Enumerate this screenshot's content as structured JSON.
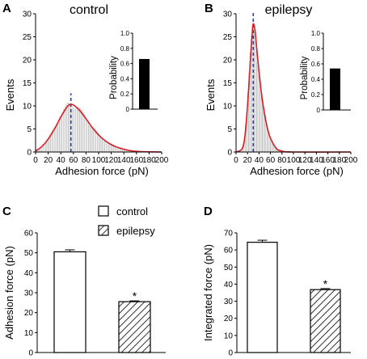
{
  "chart_data": [
    {
      "panel": "A",
      "type": "histogram",
      "title": "control",
      "xlabel": "Adhesion force (pN)",
      "ylabel": "Events",
      "xlim": [
        0,
        200
      ],
      "ylim": [
        0,
        30
      ],
      "xticks": [
        0,
        20,
        40,
        60,
        80,
        100,
        120,
        140,
        160,
        180,
        200
      ],
      "yticks": [
        0,
        5,
        10,
        15,
        20,
        25,
        30
      ],
      "grid": false,
      "bin_width": 2,
      "histogram_color": "#b5b5b5",
      "fit_color": "#d62027",
      "mean_line_color": "#2b3bb0",
      "fit": [
        [
          0,
          0.2
        ],
        [
          10,
          1.2
        ],
        [
          20,
          2.8
        ],
        [
          30,
          5.0
        ],
        [
          40,
          7.6
        ],
        [
          50,
          9.8
        ],
        [
          55,
          10.3
        ],
        [
          60,
          10.2
        ],
        [
          70,
          9.0
        ],
        [
          80,
          7.2
        ],
        [
          90,
          5.3
        ],
        [
          100,
          3.7
        ],
        [
          110,
          2.5
        ],
        [
          120,
          1.6
        ],
        [
          130,
          1.0
        ],
        [
          140,
          0.6
        ],
        [
          150,
          0.3
        ],
        [
          160,
          0.15
        ],
        [
          175,
          0.05
        ],
        [
          200,
          0.0
        ]
      ],
      "mean_line_x": 56,
      "inset": {
        "type": "bar",
        "ylabel": "Probability",
        "ylim": [
          0,
          1
        ],
        "yticks": [
          0,
          0.2,
          0.4,
          0.6,
          0.8,
          1.0
        ],
        "value": 0.66
      }
    },
    {
      "panel": "B",
      "type": "histogram",
      "title": "epilepsy",
      "xlabel": "Adhesion force (pN)",
      "ylabel": "Events",
      "xlim": [
        0,
        200
      ],
      "ylim": [
        0,
        30
      ],
      "xticks": [
        0,
        20,
        40,
        60,
        80,
        100,
        120,
        140,
        160,
        180,
        200
      ],
      "yticks": [
        0,
        5,
        10,
        15,
        20,
        25,
        30
      ],
      "grid": false,
      "bin_width": 2,
      "histogram_color": "#b5b5b5",
      "fit_color": "#d62027",
      "mean_line_color": "#2b3bb0",
      "fit": [
        [
          0,
          0.0
        ],
        [
          10,
          0.6
        ],
        [
          15,
          3.0
        ],
        [
          20,
          10.0
        ],
        [
          25,
          20.0
        ],
        [
          28,
          25.5
        ],
        [
          30,
          27.8
        ],
        [
          33,
          26.5
        ],
        [
          36,
          22.5
        ],
        [
          40,
          17.5
        ],
        [
          45,
          12.0
        ],
        [
          50,
          8.0
        ],
        [
          55,
          5.0
        ],
        [
          60,
          3.0
        ],
        [
          70,
          0.8
        ],
        [
          80,
          0.2
        ],
        [
          100,
          0.0
        ],
        [
          200,
          0.0
        ]
      ],
      "mean_line_x": 30,
      "inset": {
        "type": "bar",
        "ylabel": "Probability",
        "ylim": [
          0,
          1
        ],
        "yticks": [
          0,
          0.2,
          0.4,
          0.6,
          0.8,
          1.0
        ],
        "value": 0.54
      }
    },
    {
      "panel": "C",
      "type": "bar",
      "categories": [
        "control",
        "epilepsy"
      ],
      "values": [
        50.5,
        25.5
      ],
      "errors": [
        1.0,
        0.4
      ],
      "ylabel": "Adhesion force (pN)",
      "ylim": [
        0,
        60
      ],
      "yticks": [
        0,
        10,
        20,
        30,
        40,
        50,
        60
      ],
      "significance": "*",
      "legend": {
        "entries": [
          "control",
          "epilepsy"
        ],
        "placement": "top-center"
      },
      "fills": [
        "open",
        "hatched"
      ]
    },
    {
      "panel": "D",
      "type": "bar",
      "categories": [
        "control",
        "epilepsy"
      ],
      "values": [
        64.5,
        36.8
      ],
      "errors": [
        1.2,
        0.6
      ],
      "ylabel": "Integrated force (pN)",
      "ylim": [
        0,
        70
      ],
      "yticks": [
        0,
        10,
        20,
        30,
        40,
        50,
        60,
        70
      ],
      "significance": "*",
      "fills": [
        "open",
        "hatched"
      ]
    }
  ]
}
